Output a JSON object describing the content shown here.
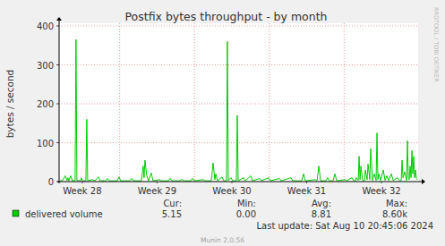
{
  "chart_data": {
    "type": "line",
    "title": "Postfix bytes throughput - by month",
    "y_label": "bytes / second",
    "watermark": "RRDTOOL / TOBI OETIKER",
    "last_update": "Last update: Sat Aug 10 20:45:06 2024",
    "footer": "Munin 2.0.56",
    "x": [
      27.7,
      27.737,
      27.772,
      27.796,
      27.808,
      27.82,
      27.844,
      27.868,
      27.904,
      27.916,
      27.928,
      27.976,
      27.988,
      28,
      28.048,
      28.06,
      28.072,
      28.132,
      28.168,
      28.216,
      28.24,
      28.311,
      28.335,
      28.359,
      28.467,
      28.491,
      28.515,
      28.635,
      28.659,
      28.683,
      28.79,
      28.814,
      28.826,
      28.838,
      28.862,
      28.886,
      28.922,
      28.946,
      29.03,
      29.054,
      29.15,
      29.174,
      29.198,
      29.305,
      29.329,
      29.353,
      29.449,
      29.473,
      29.497,
      29.617,
      29.641,
      29.725,
      29.749,
      29.772,
      29.784,
      29.808,
      29.868,
      29.892,
      29.928,
      29.94,
      29.952,
      29.988,
      30.012,
      30.06,
      30.072,
      30.084,
      30.156,
      30.18,
      30.251,
      30.275,
      30.371,
      30.395,
      30.491,
      30.515,
      30.635,
      30.659,
      30.79,
      30.814,
      30.934,
      30.958,
      30.982,
      31.114,
      31.138,
      31.162,
      31.186,
      31.257,
      31.281,
      31.305,
      31.353,
      31.377,
      31.401,
      31.509,
      31.533,
      31.605,
      31.629,
      31.653,
      31.665,
      31.689,
      31.701,
      31.713,
      31.725,
      31.748,
      31.772,
      31.784,
      31.808,
      31.82,
      31.844,
      31.856,
      31.88,
      31.904,
      31.928,
      31.94,
      31.952,
      31.964,
      31.988,
      32.024,
      32.048,
      32.072,
      32.096,
      32.132,
      32.156,
      32.216,
      32.24,
      32.263,
      32.275,
      32.287,
      32.311,
      32.335,
      32.347,
      32.359,
      32.371,
      32.383,
      32.395,
      32.407,
      32.419,
      32.431,
      32.443,
      32.455,
      32.467,
      32.479
    ],
    "series": [
      {
        "name": "delivered volume",
        "color": "#00cc00",
        "values": [
          2,
          3,
          15,
          3,
          10,
          2,
          15,
          2,
          3,
          365,
          3,
          2,
          10,
          2,
          2,
          160,
          2,
          5,
          2,
          12,
          2,
          2,
          8,
          2,
          2,
          12,
          2,
          2,
          8,
          2,
          2,
          40,
          10,
          55,
          15,
          2,
          22,
          2,
          5,
          2,
          2,
          8,
          2,
          2,
          6,
          2,
          2,
          8,
          2,
          5,
          2,
          2,
          48,
          5,
          20,
          2,
          12,
          2,
          2,
          360,
          3,
          10,
          2,
          2,
          170,
          2,
          10,
          2,
          15,
          2,
          8,
          2,
          10,
          2,
          8,
          2,
          10,
          2,
          2,
          20,
          2,
          5,
          2,
          40,
          2,
          2,
          10,
          2,
          2,
          20,
          2,
          5,
          2,
          10,
          2,
          2,
          10,
          3,
          65,
          5,
          40,
          3,
          2,
          30,
          5,
          45,
          5,
          85,
          3,
          20,
          3,
          125,
          5,
          20,
          3,
          30,
          3,
          15,
          3,
          20,
          3,
          10,
          3,
          3,
          55,
          10,
          25,
          3,
          105,
          10,
          5,
          40,
          10,
          80,
          20,
          65,
          10,
          30,
          8,
          5
        ]
      }
    ],
    "xlim": [
      27.69,
      32.49
    ],
    "xticks": [
      {
        "value": 28,
        "label": "Week 28"
      },
      {
        "value": 29,
        "label": "Week 29"
      },
      {
        "value": 30,
        "label": "Week 30"
      },
      {
        "value": 31,
        "label": "Week 31"
      },
      {
        "value": 32,
        "label": "Week 32"
      }
    ],
    "ylim": [
      0,
      400
    ],
    "yticks": [
      0,
      100,
      200,
      300,
      400
    ],
    "grid": true,
    "stats": [
      {
        "name": "Cur:",
        "value": 5.15
      },
      {
        "name": "Min:",
        "value": 0,
        "label": "0.00"
      },
      {
        "name": "Avg:",
        "value": 8.81
      },
      {
        "name": "Max:",
        "value": 8600,
        "label": "8.60k"
      }
    ]
  }
}
